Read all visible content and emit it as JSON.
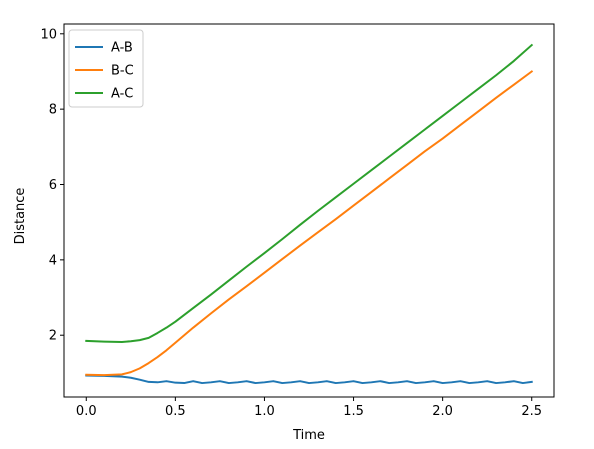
{
  "chart_data": {
    "type": "line",
    "title": "",
    "xlabel": "Time",
    "ylabel": "Distance",
    "xlim": [
      -0.125,
      2.625
    ],
    "ylim": [
      0.36,
      10.26
    ],
    "xticks": [
      0.0,
      0.5,
      1.0,
      1.5,
      2.0,
      2.5
    ],
    "xtick_labels": [
      "0.0",
      "0.5",
      "1.0",
      "1.5",
      "2.0",
      "2.5"
    ],
    "yticks": [
      2,
      4,
      6,
      8,
      10
    ],
    "ytick_labels": [
      "2",
      "4",
      "6",
      "8",
      "10"
    ],
    "grid": false,
    "legend": "top-left",
    "series": [
      {
        "name": "A-B",
        "color": "#1f77b4",
        "x": [
          0.0,
          0.1,
          0.2,
          0.25,
          0.3,
          0.35,
          0.4,
          0.45,
          0.5,
          0.55,
          0.6,
          0.65,
          0.7,
          0.75,
          0.8,
          0.85,
          0.9,
          0.95,
          1.0,
          1.05,
          1.1,
          1.15,
          1.2,
          1.25,
          1.3,
          1.35,
          1.4,
          1.45,
          1.5,
          1.55,
          1.6,
          1.65,
          1.7,
          1.75,
          1.8,
          1.85,
          1.9,
          1.95,
          2.0,
          2.05,
          2.1,
          2.15,
          2.2,
          2.25,
          2.3,
          2.35,
          2.4,
          2.45,
          2.5
        ],
        "values": [
          0.93,
          0.92,
          0.9,
          0.87,
          0.82,
          0.76,
          0.75,
          0.78,
          0.74,
          0.73,
          0.78,
          0.73,
          0.75,
          0.78,
          0.73,
          0.75,
          0.78,
          0.73,
          0.75,
          0.78,
          0.73,
          0.75,
          0.78,
          0.73,
          0.75,
          0.78,
          0.73,
          0.75,
          0.78,
          0.73,
          0.75,
          0.78,
          0.73,
          0.75,
          0.78,
          0.73,
          0.75,
          0.78,
          0.73,
          0.75,
          0.78,
          0.73,
          0.75,
          0.78,
          0.73,
          0.75,
          0.78,
          0.73,
          0.76
        ]
      },
      {
        "name": "B-C",
        "color": "#ff7f0e",
        "x": [
          0.0,
          0.1,
          0.2,
          0.25,
          0.3,
          0.35,
          0.4,
          0.45,
          0.5,
          0.6,
          0.7,
          0.8,
          0.9,
          1.0,
          1.1,
          1.2,
          1.3,
          1.4,
          1.5,
          1.6,
          1.7,
          1.8,
          1.9,
          2.0,
          2.1,
          2.2,
          2.3,
          2.4,
          2.5
        ],
        "values": [
          0.95,
          0.94,
          0.96,
          1.02,
          1.12,
          1.26,
          1.42,
          1.6,
          1.8,
          2.2,
          2.58,
          2.95,
          3.3,
          3.66,
          4.02,
          4.38,
          4.73,
          5.08,
          5.44,
          5.8,
          6.16,
          6.52,
          6.88,
          7.22,
          7.58,
          7.94,
          8.3,
          8.65,
          9.0
        ]
      },
      {
        "name": "A-C",
        "color": "#2ca02c",
        "x": [
          0.0,
          0.1,
          0.2,
          0.25,
          0.3,
          0.35,
          0.4,
          0.45,
          0.5,
          0.6,
          0.7,
          0.8,
          0.9,
          1.0,
          1.1,
          1.2,
          1.3,
          1.4,
          1.5,
          1.6,
          1.7,
          1.8,
          1.9,
          2.0,
          2.1,
          2.2,
          2.3,
          2.4,
          2.5
        ],
        "values": [
          1.85,
          1.83,
          1.82,
          1.84,
          1.87,
          1.93,
          2.06,
          2.2,
          2.36,
          2.72,
          3.08,
          3.45,
          3.82,
          4.18,
          4.55,
          4.93,
          5.3,
          5.66,
          6.02,
          6.38,
          6.74,
          7.1,
          7.46,
          7.82,
          8.18,
          8.54,
          8.9,
          9.28,
          9.7
        ]
      }
    ]
  }
}
